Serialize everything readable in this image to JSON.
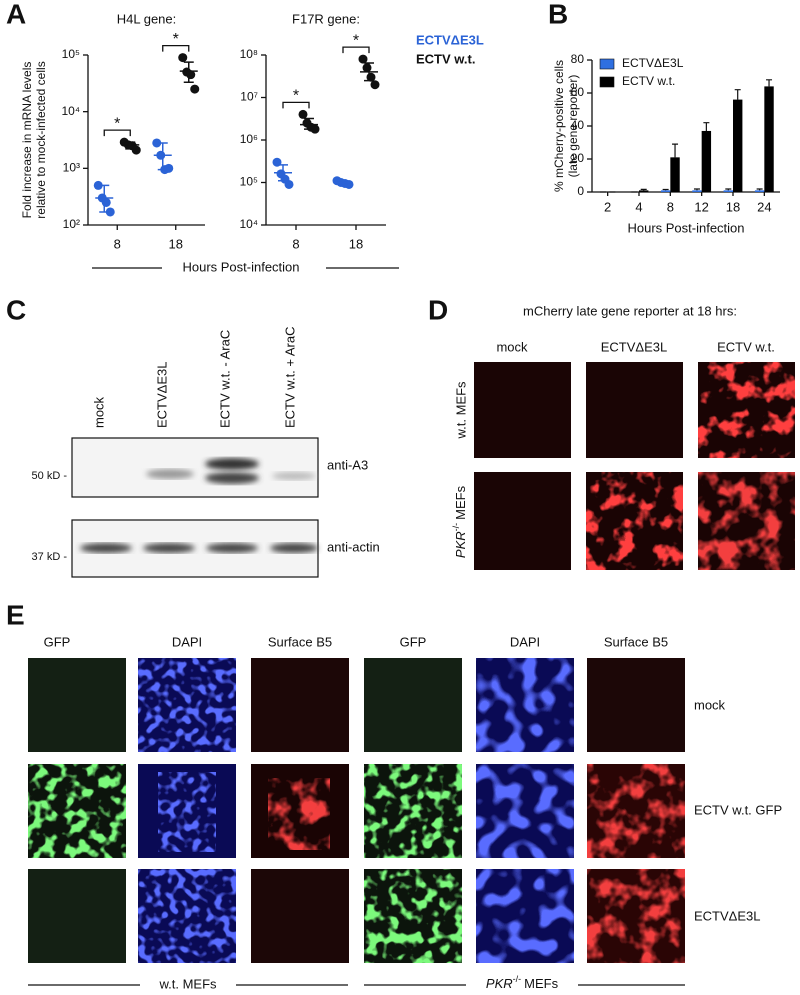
{
  "figure": {
    "panel_labels": [
      "A",
      "B",
      "C",
      "D",
      "E"
    ]
  },
  "chart_data": [
    {
      "type": "dot",
      "title": "H4L gene:",
      "y_label": [
        "Fold increase in mRNA levels",
        "relative to mock-infected cells"
      ],
      "x_label": "Hours Post-infection",
      "categories": [
        "8",
        "18"
      ],
      "log_scale": true,
      "ylim": [
        100,
        100000
      ],
      "yticks": [
        {
          "value": 100,
          "label": "10²"
        },
        {
          "value": 1000,
          "label": "10³"
        },
        {
          "value": 10000,
          "label": "10⁴"
        },
        {
          "value": 100000,
          "label": "10⁵"
        }
      ],
      "series": [
        {
          "color": "#2b63d6",
          "values": [
            [
              500,
              300,
              250,
              170
            ],
            [
              2800,
              1700,
              950,
              1000
            ]
          ],
          "means": [
            300,
            1700
          ],
          "error_low": [
            170,
            950
          ],
          "error_high": [
            500,
            2800
          ]
        },
        {
          "color": "#111111",
          "values": [
            [
              2900,
              2600,
              2500,
              2100
            ],
            [
              90000,
              50000,
              45000,
              25000
            ]
          ],
          "means": [
            2600,
            52000
          ],
          "error_low": [
            2200,
            33000
          ],
          "error_high": [
            2900,
            75000
          ]
        }
      ],
      "annotations": [
        "*",
        "*"
      ]
    },
    {
      "type": "dot",
      "title": "F17R gene:",
      "categories": [
        "8",
        "18"
      ],
      "log_scale": true,
      "ylim": [
        10000,
        100000000
      ],
      "yticks": [
        {
          "value": 10000,
          "label": "10⁴"
        },
        {
          "value": 100000,
          "label": "10⁵"
        },
        {
          "value": 1000000,
          "label": "10⁶"
        },
        {
          "value": 10000000,
          "label": "10⁷"
        },
        {
          "value": 100000000,
          "label": "10⁸"
        }
      ],
      "series": [
        {
          "name": "ECTVΔE3L",
          "color": "#2b63d6",
          "values": [
            [
              300000,
              160000,
              120000,
              90000
            ],
            [
              110000,
              100000,
              95000,
              90000
            ]
          ],
          "means": [
            170000,
            100000
          ],
          "error_low": [
            110000,
            92000
          ],
          "error_high": [
            260000,
            110000
          ]
        },
        {
          "name": "ECTV w.t.",
          "color": "#111111",
          "values": [
            [
              4000000,
              2500000,
              2000000,
              1800000
            ],
            [
              80000000,
              50000000,
              30000000,
              20000000
            ]
          ],
          "means": [
            2300000,
            40000000
          ],
          "error_low": [
            1800000,
            25000000
          ],
          "error_high": [
            3200000,
            65000000
          ]
        }
      ],
      "annotations": [
        "*",
        "*"
      ],
      "legend": "right"
    },
    {
      "type": "bar",
      "y_label": [
        "% mCherry-positive cells",
        "(late gene reporter)"
      ],
      "x_label": "Hours Post-infection",
      "categories": [
        "2",
        "4",
        "8",
        "12",
        "18",
        "24"
      ],
      "ylim": [
        0,
        80
      ],
      "yticks": [
        0,
        20,
        40,
        60,
        80
      ],
      "legend": "top-left",
      "series": [
        {
          "name": "ECTVΔE3L",
          "color": "#2f6fe0",
          "values": [
            0,
            0,
            1,
            1,
            1,
            1
          ],
          "errors": [
            0,
            0,
            0.5,
            0.8,
            0.8,
            0.8
          ]
        },
        {
          "name": "ECTV w.t.",
          "color": "#000000",
          "values": [
            0,
            1,
            21,
            37,
            56,
            64
          ],
          "errors": [
            0,
            0.6,
            8,
            5,
            6,
            4
          ]
        }
      ]
    }
  ],
  "blot": {
    "lanes": [
      "mock",
      "ECTVΔE3L",
      "ECTV w.t. - AraC",
      "ECTV w.t. + AraC"
    ],
    "antibodies": [
      "anti-A3",
      "anti-actin"
    ],
    "markers": [
      "50 kD -",
      "37 kD -"
    ]
  },
  "reporter": {
    "title": "mCherry late gene reporter at 18 hrs:",
    "columns": [
      "mock",
      "ECTVΔE3L",
      "ECTV w.t."
    ],
    "rows": [
      "w.t. MEFs",
      {
        "gene": "PKR",
        "superscript": "-/-",
        "suffix": "MEFs"
      }
    ]
  },
  "staining": {
    "columns": [
      "GFP",
      "DAPI",
      "Surface B5",
      "GFP",
      "DAPI",
      "Surface B5"
    ],
    "rows": [
      "mock",
      "ECTV w.t. GFP",
      "ECTVΔE3L"
    ],
    "groups": [
      "w.t. MEFs",
      {
        "gene": "PKR",
        "superscript": "-/-",
        "suffix": "MEFs"
      }
    ]
  }
}
